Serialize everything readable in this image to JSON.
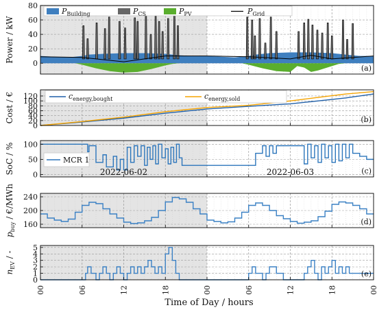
{
  "colors": {
    "building": "#3f7fbf",
    "cs": "#666666",
    "pv": "#5aae2e",
    "grid": "#000000",
    "bought": "#1f5fa8",
    "sold": "#f5a300",
    "soc": "#2b75bb",
    "price": "#3a80c4",
    "nev": "#3a80c4",
    "day1_shade": "#e4e4e4",
    "day2_shade": "#ffffff"
  },
  "xaxis": {
    "label": "Time of Day / hours",
    "tick_labels": [
      "00",
      "06",
      "12",
      "18",
      "00",
      "06",
      "12",
      "18",
      "00"
    ]
  },
  "chart_data": [
    {
      "type": "area",
      "panel_id": "(a)",
      "ylabel": "Power / kW",
      "ylim": [
        -15,
        80
      ],
      "yticks": [
        "0",
        "20",
        "40",
        "60",
        "80"
      ],
      "ytick_values": [
        0,
        20,
        40,
        60,
        80
      ],
      "legend": [
        "P_Building",
        "P_CS",
        "P_PV",
        "P_Grid"
      ],
      "legend_parts": [
        {
          "main": "P",
          "sub": "Building"
        },
        {
          "main": "P",
          "sub": "CS"
        },
        {
          "main": "P",
          "sub": "PV"
        },
        {
          "main": "P",
          "sub": "Grid"
        }
      ],
      "series": [
        {
          "name": "P_Building",
          "x": [
            0,
            2,
            4,
            6,
            7,
            9,
            12,
            15,
            18,
            20,
            22,
            24,
            26,
            28,
            30,
            31,
            33,
            36,
            39,
            42,
            44,
            46,
            48
          ],
          "values": [
            10,
            9,
            8,
            10,
            12,
            13,
            14,
            14,
            13,
            11,
            10,
            10,
            9,
            8,
            10,
            12,
            14,
            15,
            15,
            14,
            12,
            10,
            10
          ]
        },
        {
          "name": "P_PV",
          "x": [
            0,
            5,
            6,
            8,
            10,
            12,
            14,
            16,
            18,
            19,
            20,
            24,
            29,
            30,
            32,
            34,
            36,
            37,
            38,
            39,
            40,
            42,
            43,
            44,
            48
          ],
          "values": [
            0,
            0,
            -2,
            -7,
            -11,
            -13,
            -12,
            -8,
            -3,
            -1,
            0,
            0,
            0,
            -2,
            -7,
            -11,
            -12,
            -4,
            -6,
            -12,
            -10,
            -4,
            -1,
            0,
            0
          ]
        },
        {
          "name": "P_CS",
          "x": [
            6.2,
            6.8,
            8.1,
            9.3,
            9.9,
            11.4,
            12.2,
            13.6,
            14.0,
            15.2,
            15.9,
            16.6,
            17.1,
            17.6,
            18.4,
            19.3,
            19.8,
            29.8,
            30.5,
            30.9,
            31.6,
            32.4,
            33.2,
            34.0,
            37.2,
            38.0,
            38.6,
            39.2,
            39.9,
            40.6,
            41.4,
            42.0,
            43.6,
            44.2,
            45.0
          ],
          "values": [
            52,
            34,
            56,
            48,
            64,
            58,
            49,
            63,
            58,
            66,
            40,
            66,
            58,
            44,
            62,
            67,
            52,
            64,
            60,
            38,
            62,
            28,
            64,
            44,
            44,
            56,
            61,
            53,
            46,
            42,
            56,
            38,
            60,
            33,
            55
          ]
        },
        {
          "name": "P_Grid",
          "x": [
            0,
            6,
            12,
            18,
            24,
            30,
            36,
            39,
            42,
            48
          ],
          "values": [
            9,
            8,
            2,
            10,
            10,
            9,
            6,
            11,
            6,
            10
          ]
        }
      ]
    },
    {
      "type": "line",
      "panel_id": "(b)",
      "ylabel": "Cost / €",
      "ylim": [
        0,
        145
      ],
      "yticks": [
        "0",
        "20",
        "40",
        "60",
        "80",
        "100",
        "120"
      ],
      "ytick_values": [
        0,
        20,
        40,
        60,
        80,
        100,
        120
      ],
      "legend_parts": [
        {
          "main": "c",
          "sub": "energy,bought"
        },
        {
          "main": "c",
          "sub": "energy,sold"
        }
      ],
      "series": [
        {
          "name": "c_energy,bought",
          "x": [
            0,
            6,
            12,
            18,
            24,
            30,
            36,
            40,
            44,
            48
          ],
          "values": [
            0,
            14,
            30,
            50,
            67,
            78,
            88,
            100,
            112,
            128
          ]
        },
        {
          "name": "c_energy,sold",
          "x": [
            0,
            6,
            12,
            18,
            24,
            30,
            36,
            40,
            44,
            48
          ],
          "values": [
            0,
            16,
            34,
            56,
            73,
            82,
            100,
            114,
            128,
            138
          ]
        }
      ]
    },
    {
      "type": "line",
      "panel_id": "(c)",
      "ylabel": "SoC / %",
      "ylim": [
        -8,
        112
      ],
      "yticks": [
        "0",
        "50",
        "100"
      ],
      "ytick_values": [
        0,
        50,
        100
      ],
      "annotations": [
        "2022-06-02",
        "2022-06-03"
      ],
      "legend": [
        "MCR 1"
      ],
      "series": [
        {
          "name": "MCR 1",
          "step": true,
          "x": [
            0,
            6,
            6.8,
            7.0,
            8.0,
            9.0,
            9.5,
            10.5,
            11.0,
            11.5,
            12.0,
            12.5,
            13.0,
            13.5,
            14.0,
            14.5,
            15.0,
            15.4,
            15.8,
            16.2,
            16.6,
            17.0,
            17.5,
            18.0,
            18.4,
            18.8,
            19.2,
            19.6,
            20.0,
            20.4,
            30.0,
            31.0,
            32.0,
            32.5,
            33.0,
            33.5,
            34.0,
            35.0,
            36.0,
            37.0,
            38.0,
            38.5,
            39.0,
            39.5,
            40.0,
            40.5,
            41.0,
            41.5,
            42.0,
            42.5,
            43.0,
            43.5,
            44.0,
            44.5,
            45.0,
            46.0,
            47.0
          ],
          "values": [
            100,
            100,
            75,
            95,
            40,
            65,
            25,
            60,
            15,
            50,
            15,
            90,
            40,
            95,
            60,
            95,
            30,
            90,
            50,
            95,
            35,
            100,
            55,
            85,
            35,
            90,
            40,
            100,
            55,
            30,
            30,
            70,
            95,
            60,
            95,
            70,
            95,
            95,
            95,
            95,
            35,
            100,
            55,
            95,
            40,
            100,
            55,
            95,
            40,
            100,
            45,
            100,
            55,
            100,
            70,
            60,
            50
          ]
        }
      ]
    },
    {
      "type": "line",
      "panel_id": "(d)",
      "ylabel": "p_buy / €/MWh",
      "ylabel_parts": {
        "main": "p",
        "sub": "buy",
        "unit_num": "€",
        "unit_den": "MWh"
      },
      "ylim": [
        150,
        250
      ],
      "yticks": [
        "160",
        "200",
        "240"
      ],
      "ytick_values": [
        160,
        200,
        240
      ],
      "series": [
        {
          "name": "p_buy",
          "step": true,
          "x": [
            0,
            1,
            2,
            3,
            4,
            5,
            6,
            7,
            8,
            9,
            10,
            11,
            12,
            13,
            14,
            15,
            16,
            17,
            18,
            19,
            20,
            21,
            22,
            23,
            24,
            25,
            26,
            27,
            28,
            29,
            30,
            31,
            32,
            33,
            34,
            35,
            36,
            37,
            38,
            39,
            40,
            41,
            42,
            43,
            44,
            45,
            46,
            47
          ],
          "values": [
            190,
            178,
            172,
            168,
            175,
            195,
            215,
            224,
            220,
            205,
            190,
            178,
            166,
            162,
            164,
            170,
            180,
            200,
            225,
            238,
            234,
            224,
            205,
            190,
            172,
            168,
            164,
            167,
            178,
            195,
            215,
            222,
            215,
            200,
            185,
            176,
            168,
            163,
            166,
            170,
            182,
            198,
            218,
            225,
            222,
            215,
            205,
            190
          ]
        }
      ]
    },
    {
      "type": "line",
      "panel_id": "(e)",
      "ylabel": "n_EV / -",
      "ylabel_parts": {
        "main": "n",
        "sub": "EV",
        "rest": " / -"
      },
      "ylim": [
        0,
        5.3
      ],
      "yticks": [
        "0",
        "1",
        "2",
        "3",
        "4",
        "5"
      ],
      "ytick_values": [
        0,
        1,
        2,
        3,
        4,
        5
      ],
      "series": [
        {
          "name": "n_EV",
          "step": true,
          "x": [
            0,
            6.5,
            6.8,
            7.3,
            8.0,
            8.5,
            9.0,
            9.5,
            10.0,
            10.5,
            11.0,
            11.5,
            12.0,
            12.5,
            13.0,
            13.5,
            14.0,
            14.5,
            15.0,
            15.5,
            16.0,
            16.5,
            17.0,
            17.5,
            18.0,
            18.5,
            19.0,
            19.5,
            20.0,
            21.0,
            30.0,
            30.5,
            31.0,
            32.0,
            32.5,
            33.0,
            34.0,
            35.0,
            36.0,
            37.0,
            38.0,
            38.5,
            39.0,
            39.5,
            40.0,
            40.5,
            41.0,
            41.5,
            42.0,
            42.5,
            43.0,
            43.5,
            44.0,
            44.5,
            45.0,
            46.0
          ],
          "values": [
            0,
            1,
            2,
            1,
            0,
            1,
            2,
            1,
            0,
            1,
            2,
            1,
            0,
            1,
            2,
            1,
            2,
            1,
            2,
            3,
            2,
            1,
            2,
            1,
            4,
            5,
            3,
            1,
            0,
            0,
            1,
            2,
            1,
            0,
            1,
            2,
            1,
            0,
            0,
            0,
            1,
            2,
            3,
            1,
            0,
            2,
            1,
            2,
            3,
            1,
            2,
            1,
            2,
            1,
            1,
            1
          ]
        }
      ]
    }
  ]
}
